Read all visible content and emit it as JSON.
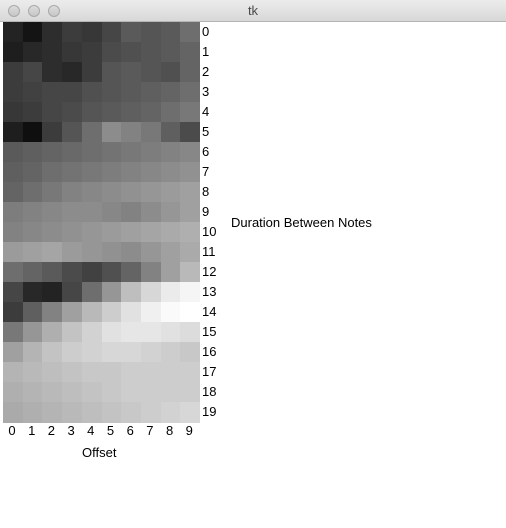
{
  "window": {
    "title": "tk"
  },
  "chart_data": {
    "type": "heatmap",
    "xlabel": "Offset",
    "ylabel": "Duration Between Notes",
    "x_ticks": [
      "0",
      "1",
      "2",
      "3",
      "4",
      "5",
      "6",
      "7",
      "8",
      "9"
    ],
    "y_ticks": [
      "0",
      "1",
      "2",
      "3",
      "4",
      "5",
      "6",
      "7",
      "8",
      "9",
      "10",
      "11",
      "12",
      "13",
      "14",
      "15",
      "16",
      "17",
      "18",
      "19"
    ],
    "grayscale_values": [
      [
        35,
        20,
        45,
        60,
        55,
        70,
        90,
        85,
        90,
        110
      ],
      [
        30,
        40,
        45,
        55,
        60,
        75,
        80,
        85,
        90,
        100
      ],
      [
        60,
        70,
        45,
        40,
        60,
        85,
        90,
        85,
        80,
        100
      ],
      [
        60,
        65,
        70,
        70,
        80,
        85,
        90,
        95,
        100,
        110
      ],
      [
        55,
        60,
        70,
        75,
        85,
        90,
        95,
        100,
        110,
        120
      ],
      [
        30,
        15,
        60,
        85,
        110,
        140,
        130,
        120,
        95,
        75
      ],
      [
        90,
        95,
        100,
        105,
        110,
        115,
        120,
        125,
        130,
        135
      ],
      [
        95,
        100,
        110,
        115,
        120,
        125,
        130,
        135,
        140,
        145
      ],
      [
        100,
        110,
        120,
        130,
        135,
        140,
        145,
        150,
        155,
        160
      ],
      [
        125,
        130,
        135,
        140,
        140,
        135,
        130,
        140,
        150,
        160
      ],
      [
        130,
        135,
        140,
        145,
        150,
        155,
        160,
        165,
        170,
        175
      ],
      [
        155,
        160,
        165,
        155,
        150,
        145,
        140,
        150,
        160,
        170
      ],
      [
        110,
        100,
        90,
        75,
        65,
        80,
        100,
        130,
        160,
        185
      ],
      [
        70,
        40,
        35,
        70,
        110,
        150,
        190,
        215,
        235,
        245
      ],
      [
        60,
        95,
        130,
        160,
        185,
        205,
        225,
        240,
        250,
        255
      ],
      [
        120,
        150,
        175,
        195,
        210,
        225,
        230,
        230,
        225,
        220
      ],
      [
        160,
        180,
        195,
        205,
        210,
        215,
        215,
        210,
        205,
        200
      ],
      [
        180,
        185,
        190,
        195,
        200,
        200,
        205,
        205,
        205,
        205
      ],
      [
        175,
        180,
        185,
        190,
        195,
        200,
        205,
        205,
        205,
        205
      ],
      [
        170,
        175,
        180,
        185,
        190,
        195,
        200,
        205,
        210,
        215
      ]
    ]
  }
}
